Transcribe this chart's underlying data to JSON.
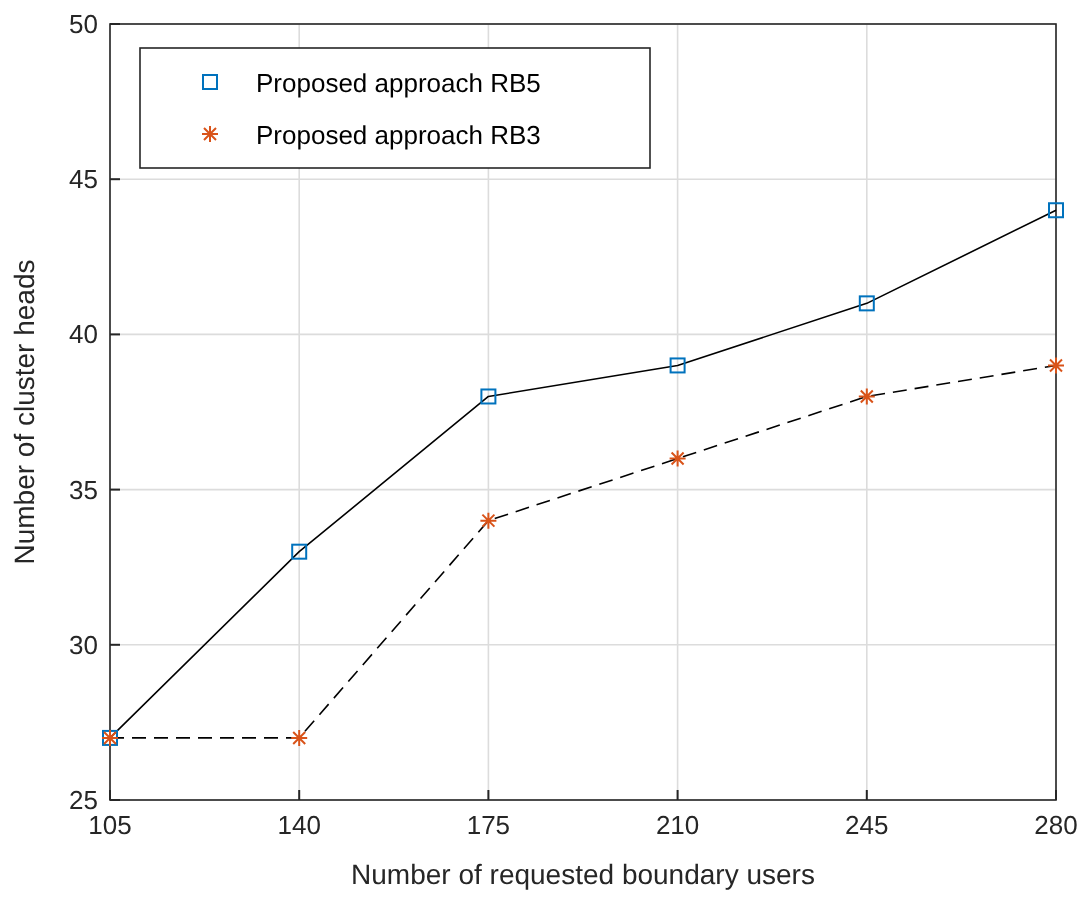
{
  "chart_data": {
    "type": "line",
    "xlabel": "Number of requested boundary users",
    "ylabel": "Number of cluster heads",
    "x": [
      105,
      140,
      175,
      210,
      245,
      280
    ],
    "xlim": [
      105,
      280
    ],
    "xticks": [
      105,
      140,
      175,
      210,
      245,
      280
    ],
    "ylim": [
      25,
      50
    ],
    "yticks": [
      25,
      30,
      35,
      40,
      45,
      50
    ],
    "grid": true,
    "legend": "top left",
    "series": [
      {
        "name": "Proposed approach RB5",
        "color": "#0072bd",
        "values": [
          27,
          33,
          38,
          39,
          41,
          44
        ],
        "marker": "square",
        "line_style": "solid"
      },
      {
        "name": "Proposed approach RB3",
        "color": "#d95319",
        "values": [
          27,
          27,
          34,
          36,
          38,
          39
        ],
        "marker": "cross",
        "line_style": "dashed"
      }
    ]
  }
}
